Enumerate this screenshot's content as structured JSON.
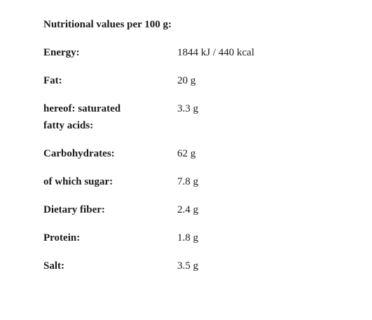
{
  "title": "Nutritional values per 100 g:",
  "rows": [
    {
      "label": "Energy:",
      "value": "1844 kJ / 440 kcal"
    },
    {
      "label": "Fat:",
      "value": "20 g"
    },
    {
      "label": "hereof: saturated fatty acids:",
      "value": "3.3 g"
    },
    {
      "label": "Carbohydrates:",
      "value": "62 g"
    },
    {
      "label": "of which sugar:",
      "value": "7.8 g"
    },
    {
      "label": "Dietary fiber:",
      "value": "2.4 g"
    },
    {
      "label": "Protein:",
      "value": "1.8 g"
    },
    {
      "label": "Salt:",
      "value": "3.5 g"
    }
  ]
}
